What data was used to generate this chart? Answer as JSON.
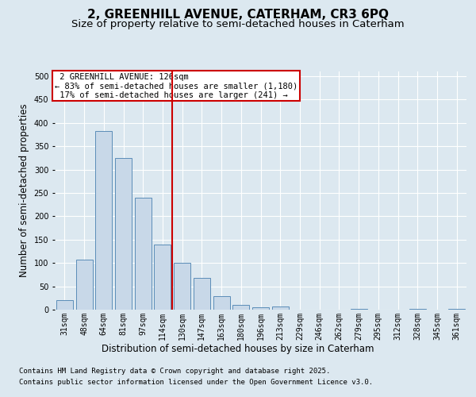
{
  "title_line1": "2, GREENHILL AVENUE, CATERHAM, CR3 6PQ",
  "title_line2": "Size of property relative to semi-detached houses in Caterham",
  "xlabel": "Distribution of semi-detached houses by size in Caterham",
  "ylabel": "Number of semi-detached properties",
  "categories": [
    "31sqm",
    "48sqm",
    "64sqm",
    "81sqm",
    "97sqm",
    "114sqm",
    "130sqm",
    "147sqm",
    "163sqm",
    "180sqm",
    "196sqm",
    "213sqm",
    "229sqm",
    "246sqm",
    "262sqm",
    "279sqm",
    "295sqm",
    "312sqm",
    "328sqm",
    "345sqm",
    "361sqm"
  ],
  "values": [
    20,
    107,
    383,
    325,
    240,
    140,
    100,
    68,
    29,
    10,
    5,
    6,
    0,
    0,
    0,
    2,
    0,
    0,
    2,
    0,
    2
  ],
  "bar_color": "#c8d8e8",
  "bar_edge_color": "#5b8db8",
  "marker_label": "2 GREENHILL AVENUE: 126sqm",
  "pct_smaller": "83% of semi-detached houses are smaller (1,180)",
  "pct_larger": "17% of semi-detached houses are larger (241)",
  "marker_line_color": "#cc0000",
  "annotation_box_color": "#cc0000",
  "ylim": [
    0,
    510
  ],
  "yticks": [
    0,
    50,
    100,
    150,
    200,
    250,
    300,
    350,
    400,
    450,
    500
  ],
  "footer_line1": "Contains HM Land Registry data © Crown copyright and database right 2025.",
  "footer_line2": "Contains public sector information licensed under the Open Government Licence v3.0.",
  "background_color": "#dce8f0",
  "plot_bg_color": "#dce8f0",
  "grid_color": "#ffffff",
  "title_fontsize": 11,
  "subtitle_fontsize": 9.5,
  "axis_label_fontsize": 8.5,
  "tick_fontsize": 7,
  "annot_fontsize": 7.5,
  "footer_fontsize": 6.5
}
